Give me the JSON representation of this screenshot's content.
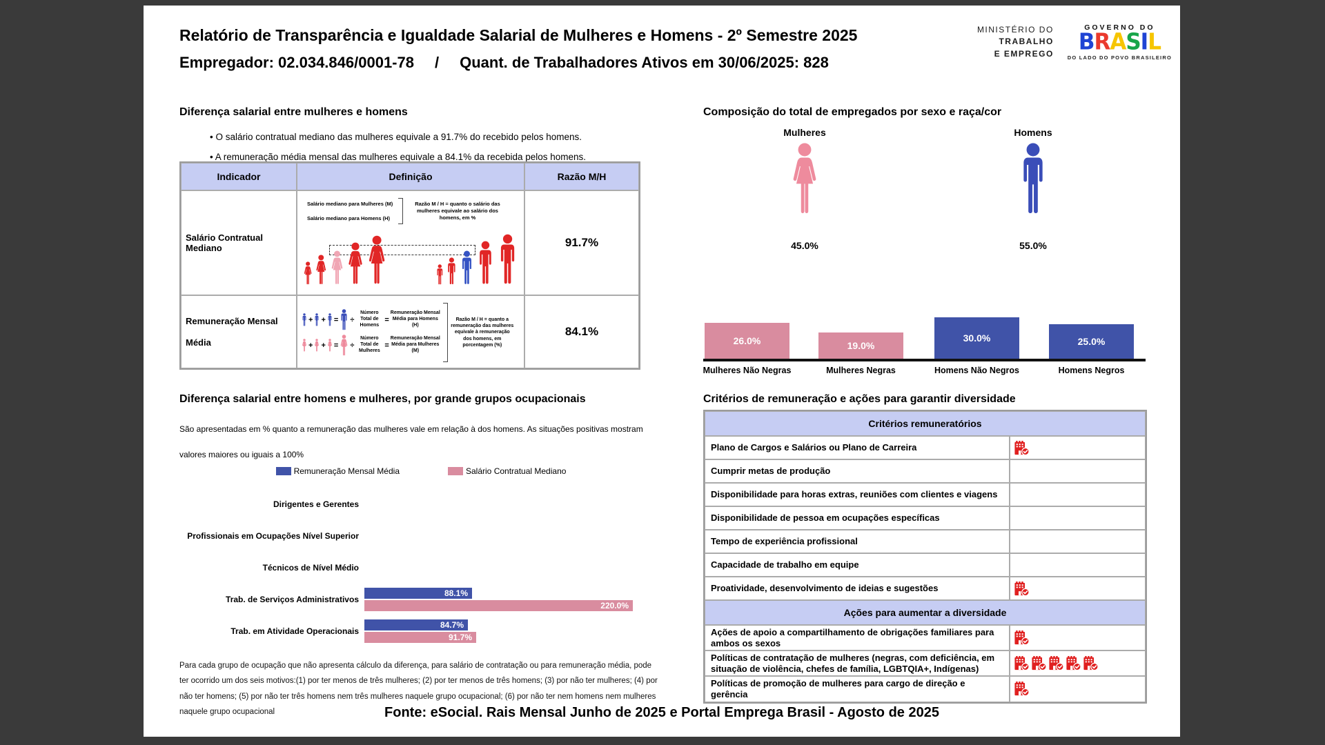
{
  "page": {
    "title": "Relatório de Transparência e Igualdade Salarial de Mulheres e Homens - 2º Semestre 2025",
    "employer": "Empregador: 02.034.846/0001-78",
    "separator": "/",
    "active_workers": "Quant. de Trabalhadores Ativos em 30/06/2025: 828",
    "footer": "Fonte: eSocial. Rais Mensal Junho de 2025 e Portal Emprega Brasil - Agosto de 2025"
  },
  "logos": {
    "ministry_line1": "MINISTÉRIO DO",
    "ministry_line2": "TRABALHO",
    "ministry_line3": "E EMPREGO",
    "governo": "GOVERNO DO",
    "brasil": "BRASIL",
    "tagline": "DO LADO DO POVO BRASILEIRO"
  },
  "salary_gap": {
    "heading": "Diferença salarial entre mulheres e homens",
    "bullets": [
      "O salário contratual mediano das mulheres equivale a 91.7% do recebido pelos homens.",
      "A remuneração média mensal das mulheres equivale a 84.1% da recebida pelos homens."
    ],
    "table": {
      "headers": [
        "Indicador",
        "Definição",
        "Razão M/H"
      ],
      "rows": [
        {
          "indicator": "Salário Contratual Mediano",
          "ratio": "91.7%"
        },
        {
          "indicator": "Remuneração Mensal Média",
          "ratio": "84.1%"
        }
      ]
    },
    "diagram_median": {
      "label_women": "Salário mediano para Mulheres (M)",
      "label_men": "Salário mediano para Homens (H)",
      "note": "Razão M / H = quanto o salário das mulheres equivale ao salário dos homens, em %"
    },
    "diagram_mean": {
      "num_homens": "Número Total de Homens",
      "rem_homens": "Remuneração Mensal Média para Homens (H)",
      "num_mulheres": "Número Total de Mulheres",
      "rem_mulheres": "Remuneração Mensal Média para Mulheres (M)",
      "note": "Razão M / H = quanto a remuneração das mulheres equivale à remuneração dos homens, em porcentagem (%)"
    }
  },
  "composition": {
    "heading": "Composição do total de empregados por sexo e raça/cor",
    "women_label": "Mulheres",
    "women_pct": "45.0%",
    "men_label": "Homens",
    "men_pct": "55.0%"
  },
  "occupational": {
    "heading": "Diferença salarial entre homens e mulheres, por grande grupos ocupacionais",
    "description": "São apresentadas em % quanto a remuneração das mulheres vale em relação à dos homens. As situações positivas mostram valores maiores ou iguais a 100%",
    "footnote": "Para cada grupo de ocupação que não apresenta cálculo da diferença, para salário de contratação ou para remuneração média, pode ter ocorrido um dos seis motivos:(1) por ter menos de três mulheres; (2) por ter menos de três homens; (3) por não ter mulheres; (4) por não ter homens; (5) por não ter três homens nem três mulheres naquele grupo ocupacional; (6) por não ter nem homens nem mulheres naquele grupo ocupacional"
  },
  "criteria": {
    "heading": "Critérios de remuneração e ações para garantir diversidade",
    "section1_title": "Critérios remuneratórios",
    "section1_rows": [
      {
        "label": "Plano de Cargos e Salários ou Plano de Carreira",
        "icons": 1
      },
      {
        "label": "Cumprir metas de produção",
        "icons": 0
      },
      {
        "label": "Disponibilidade para horas extras, reuniões com clientes e viagens",
        "icons": 0
      },
      {
        "label": "Disponibilidade de pessoa em ocupações específicas",
        "icons": 0
      },
      {
        "label": "Tempo de experiência profissional",
        "icons": 0
      },
      {
        "label": "Capacidade de trabalho em equipe",
        "icons": 0
      },
      {
        "label": "Proatividade, desenvolvimento de ideias e sugestões",
        "icons": 1
      }
    ],
    "section2_title": "Ações para aumentar a diversidade",
    "section2_rows": [
      {
        "label": "Ações de apoio a compartilhamento de obrigações familiares para ambos os sexos",
        "icons": 1
      },
      {
        "label": "Políticas de contratação de mulheres (negras, com deficiência, em situação de violência, chefes de família, LGBTQIA+, Indígenas)",
        "icons": 5
      },
      {
        "label": "Políticas de promoção de mulheres para cargo de direção e gerência",
        "icons": 1
      }
    ]
  },
  "chart_data": [
    {
      "type": "bar",
      "title": "Composição do total de empregados por sexo e raça/cor",
      "categories": [
        "Mulheres Não Negras",
        "Mulheres Negras",
        "Homens Não Negros",
        "Homens Negros"
      ],
      "values": [
        26.0,
        19.0,
        30.0,
        25.0
      ],
      "value_labels": [
        "26.0%",
        "19.0%",
        "30.0%",
        "25.0%"
      ],
      "colors": [
        "#d98c9f",
        "#d98c9f",
        "#4053a8",
        "#4053a8"
      ],
      "gender_split": {
        "Mulheres": 45.0,
        "Homens": 55.0
      },
      "ylim": [
        0,
        30
      ],
      "grid": false,
      "legend_position": "none"
    },
    {
      "type": "bar",
      "orientation": "horizontal",
      "title": "Diferença salarial entre homens e mulheres, por grande grupos ocupacionais",
      "categories": [
        "Dirigentes e Gerentes",
        "Profissionais em Ocupações Nível Superior",
        "Técnicos de Nível Médio",
        "Trab. de Serviços Administrativos",
        "Trab. em Atividade Operacionais"
      ],
      "series": [
        {
          "name": "Remuneração Mensal Média",
          "color": "#4053a8",
          "values": [
            null,
            null,
            null,
            88.1,
            84.7
          ],
          "labels": [
            null,
            null,
            null,
            "88.1%",
            "84.7%"
          ]
        },
        {
          "name": "Salário Contratual Mediano",
          "color": "#d98c9f",
          "values": [
            null,
            null,
            null,
            220.0,
            91.7
          ],
          "labels": [
            null,
            null,
            null,
            "220.0%",
            "91.7%"
          ]
        }
      ],
      "xlim": [
        0,
        230
      ],
      "grid": false,
      "legend_position": "top"
    }
  ],
  "colors": {
    "header_lavender": "#c6cdf3",
    "bar_pink": "#d98c9f",
    "bar_blue": "#4053a8",
    "figure_pink": "#ee8b9d",
    "figure_blue": "#3a4db8",
    "pictogram_red": "#e12626",
    "icon_red": "#e02020",
    "baseline_black": "#111111"
  }
}
